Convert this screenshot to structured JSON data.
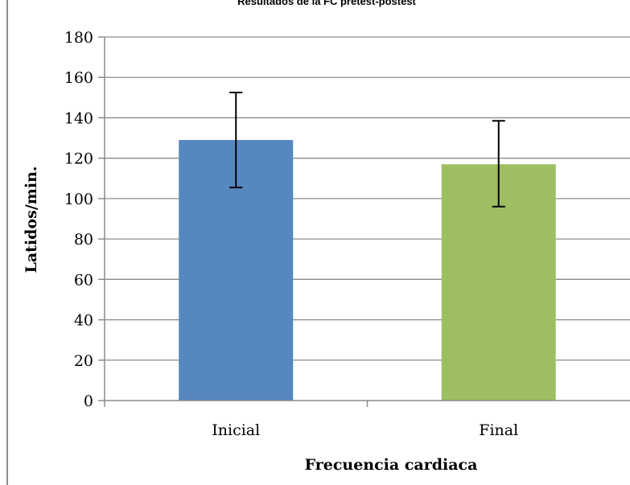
{
  "chart_data": {
    "type": "bar",
    "title": "Resultados de la FC pretest-postest",
    "categories": [
      "Inicial",
      "Final"
    ],
    "values": [
      129,
      117
    ],
    "error_bars": [
      {
        "low": 105.5,
        "high": 152.5
      },
      {
        "low": 96,
        "high": 138.5
      }
    ],
    "colors": [
      "#5687c0",
      "#9dbf62"
    ],
    "xlabel": "Frecuencia cardiaca",
    "ylabel": "Latidos/min.",
    "ylim": [
      0,
      180
    ],
    "yticks": [
      "0",
      "20",
      "40",
      "60",
      "80",
      "100",
      "120",
      "140",
      "160",
      "180"
    ],
    "grid": true,
    "legend": "none"
  }
}
